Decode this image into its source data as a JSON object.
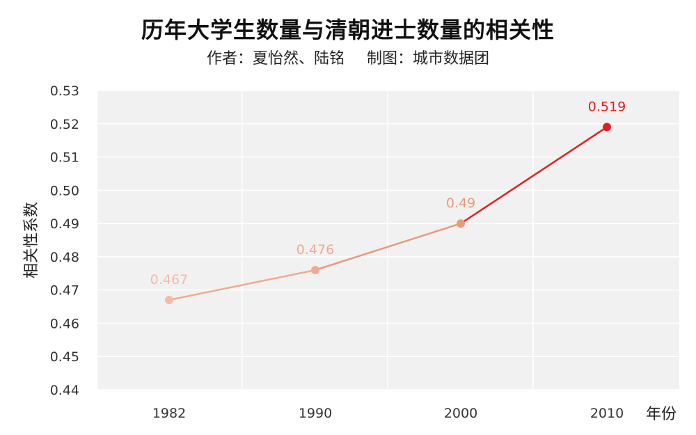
{
  "chart_data": {
    "type": "line",
    "title": "历年大学生数量与清朝进士数量的相关性",
    "subtitle_author": "作者：夏怡然、陆铭",
    "subtitle_credit": "制图：城市数据团",
    "xlabel": "年份",
    "ylabel": "相关性系数",
    "categories": [
      "1982",
      "1990",
      "2000",
      "2010"
    ],
    "series": [
      {
        "values": [
          0.467,
          0.476,
          0.49,
          0.519
        ]
      }
    ],
    "data_labels": [
      "0.467",
      "0.476",
      "0.49",
      "0.519"
    ],
    "ylim": [
      0.44,
      0.53
    ],
    "yticks": [
      "0.53",
      "0.52",
      "0.51",
      "0.50",
      "0.49",
      "0.48",
      "0.47",
      "0.46",
      "0.45",
      "0.44"
    ],
    "grid": true,
    "colors": {
      "plot_background": "#f1f1f1",
      "grid": "#ffffff",
      "point_colors": [
        "#f2bca8",
        "#eeab92",
        "#e89a7c",
        "#e21e1e"
      ]
    }
  }
}
